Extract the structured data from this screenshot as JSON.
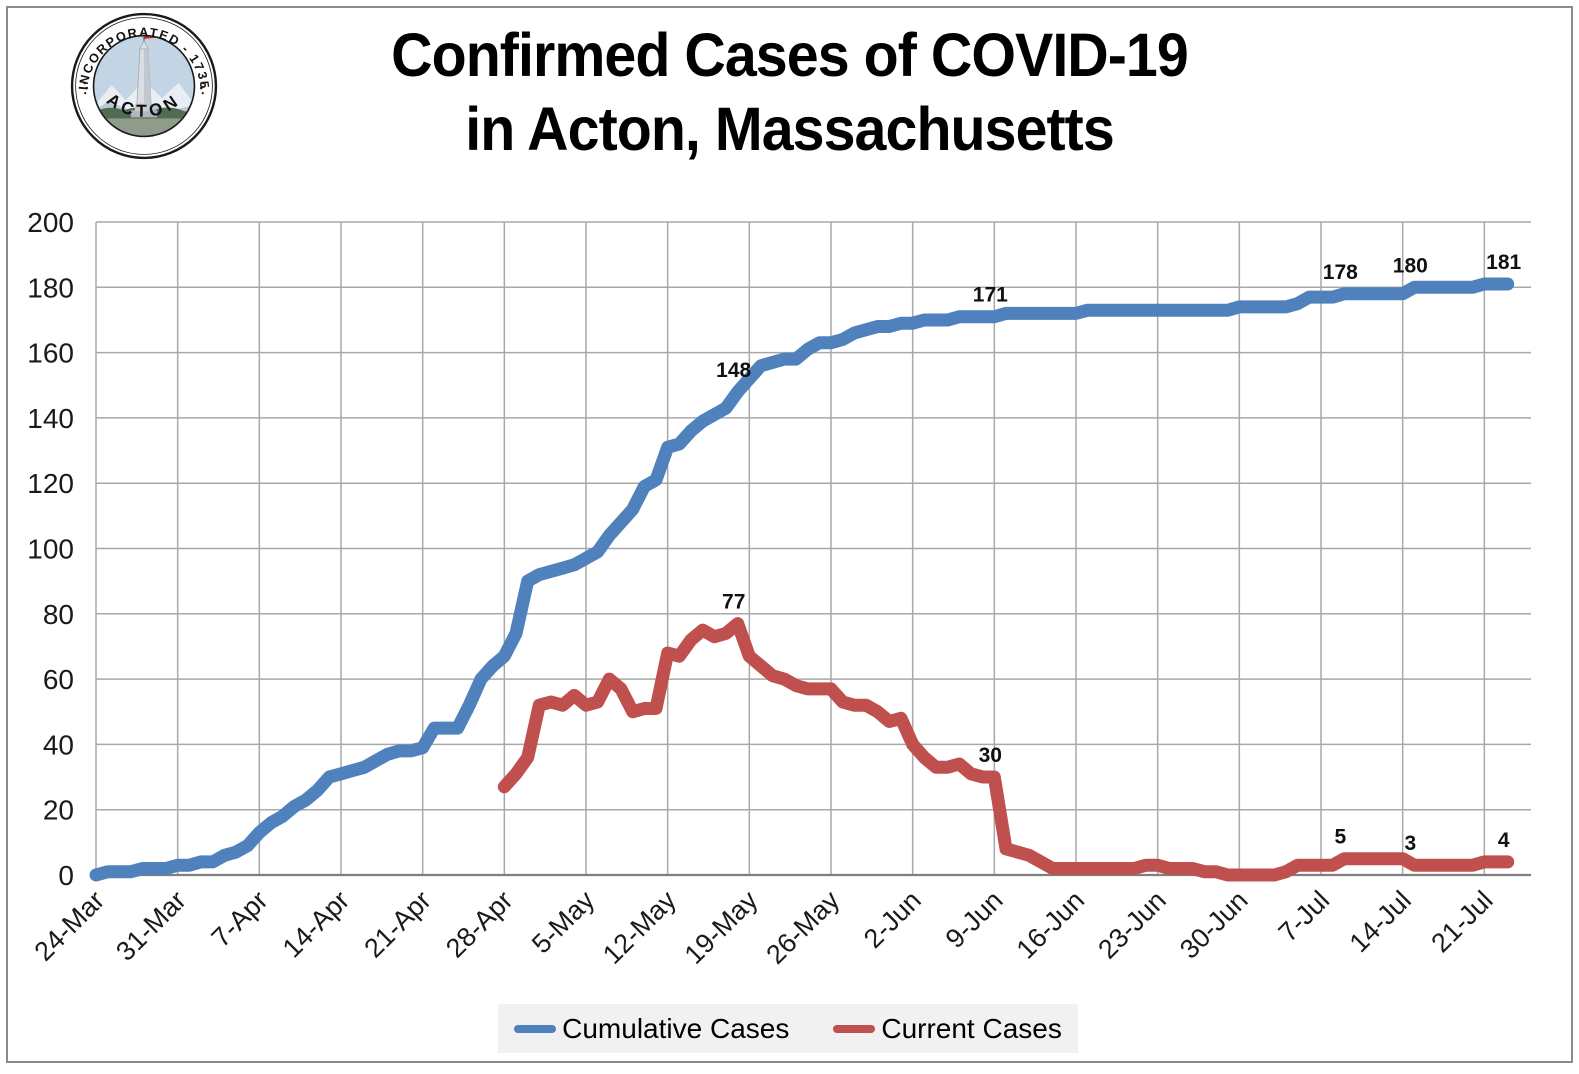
{
  "title": {
    "line1": "Confirmed Cases of COVID-19",
    "line2": "in Acton, Massachusetts"
  },
  "logo": {
    "arc_top": "INCORPORATED - 1735",
    "arc_bottom": "ACTON"
  },
  "chart_data": {
    "type": "line",
    "title": "Confirmed Cases of COVID-19 in Acton, Massachusetts",
    "x_start_label": "24-Mar",
    "x_tick_every_days": 7,
    "x_tick_labels": [
      "24-Mar",
      "31-Mar",
      "7-Apr",
      "14-Apr",
      "21-Apr",
      "28-Apr",
      "5-May",
      "12-May",
      "19-May",
      "26-May",
      "2-Jun",
      "9-Jun",
      "16-Jun",
      "23-Jun",
      "30-Jun",
      "7-Jul",
      "14-Jul",
      "21-Jul"
    ],
    "ylim": [
      0,
      200
    ],
    "y_tick_step": 20,
    "grid": true,
    "legend_position": "bottom",
    "colors": {
      "grid": "#a8a8a8",
      "axis": "#7f7f7f",
      "tick_text": "#1a1a1a",
      "data_label": "#111111",
      "legend_bg": "#f1f1f1"
    },
    "series": [
      {
        "name": "Cumulative Cases",
        "color": "#4F81BD",
        "start_index": 0,
        "values": [
          0,
          1,
          1,
          1,
          2,
          2,
          2,
          3,
          3,
          4,
          4,
          6,
          7,
          9,
          13,
          16,
          18,
          21,
          23,
          26,
          30,
          31,
          32,
          33,
          35,
          37,
          38,
          38,
          39,
          45,
          45,
          45,
          52,
          60,
          64,
          67,
          74,
          90,
          92,
          93,
          94,
          95,
          97,
          99,
          104,
          108,
          112,
          119,
          121,
          131,
          132,
          136,
          139,
          141,
          143,
          148,
          152,
          156,
          157,
          158,
          158,
          161,
          163,
          163,
          164,
          166,
          167,
          168,
          168,
          169,
          169,
          170,
          170,
          170,
          171,
          171,
          171,
          171,
          172,
          172,
          172,
          172,
          172,
          172,
          172,
          173,
          173,
          173,
          173,
          173,
          173,
          173,
          173,
          173,
          173,
          173,
          173,
          173,
          174,
          174,
          174,
          174,
          174,
          175,
          177,
          177,
          177,
          178,
          178,
          178,
          178,
          178,
          178,
          180,
          180,
          180,
          180,
          180,
          180,
          181,
          181,
          181
        ]
      },
      {
        "name": "Current Cases",
        "color": "#C0504D",
        "start_index": 35,
        "values": [
          27,
          31,
          36,
          52,
          53,
          52,
          55,
          52,
          53,
          60,
          57,
          50,
          51,
          51,
          68,
          67,
          72,
          75,
          73,
          74,
          77,
          67,
          64,
          61,
          60,
          58,
          57,
          57,
          57,
          53,
          52,
          52,
          50,
          47,
          48,
          40,
          36,
          33,
          33,
          34,
          31,
          30,
          30,
          8,
          7,
          6,
          4,
          2,
          2,
          2,
          2,
          2,
          2,
          2,
          2,
          3,
          3,
          2,
          2,
          2,
          1,
          1,
          0,
          0,
          0,
          0,
          0,
          1,
          3,
          3,
          3,
          3,
          5,
          5,
          5,
          5,
          5,
          5,
          3,
          3,
          3,
          3,
          3,
          3,
          4,
          4,
          4
        ]
      }
    ],
    "point_labels": [
      {
        "series": 0,
        "index": 55,
        "text": "148"
      },
      {
        "series": 0,
        "index": 77,
        "text": "171"
      },
      {
        "series": 0,
        "index": 107,
        "text": "178"
      },
      {
        "series": 0,
        "index": 113,
        "text": "180"
      },
      {
        "series": 0,
        "index": 121,
        "text": "181"
      },
      {
        "series": 1,
        "index": 55,
        "text": "77"
      },
      {
        "series": 1,
        "index": 77,
        "text": "30"
      },
      {
        "series": 1,
        "index": 107,
        "text": "5"
      },
      {
        "series": 1,
        "index": 113,
        "text": "3"
      },
      {
        "series": 1,
        "index": 121,
        "text": "4"
      }
    ]
  }
}
